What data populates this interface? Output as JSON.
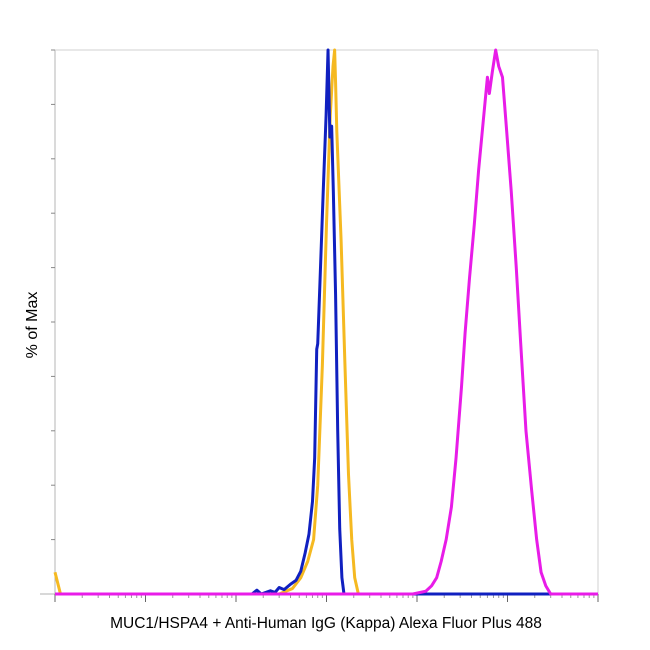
{
  "chart_data": {
    "type": "line",
    "title": "",
    "xlabel": "MUC1/HSPA4 + Anti-Human IgG (Kappa) Alexa Fluor Plus 488",
    "ylabel": "% of Max",
    "x_scale": "log",
    "xlim": [
      1,
      1000000
    ],
    "ylim": [
      0,
      100
    ],
    "grid": false,
    "legend": "none",
    "series": [
      {
        "color": "#f5b921",
        "points": [
          [
            1,
            4
          ],
          [
            1.15,
            0
          ],
          [
            300,
            0
          ],
          [
            420,
            1
          ],
          [
            520,
            3
          ],
          [
            620,
            6
          ],
          [
            720,
            10
          ],
          [
            800,
            20
          ],
          [
            900,
            42
          ],
          [
            1000,
            68
          ],
          [
            1100,
            88
          ],
          [
            1180,
            97
          ],
          [
            1230,
            100
          ],
          [
            1260,
            94
          ],
          [
            1300,
            85
          ],
          [
            1450,
            65
          ],
          [
            1600,
            42
          ],
          [
            1750,
            22
          ],
          [
            1900,
            10
          ],
          [
            2050,
            3
          ],
          [
            2250,
            0
          ],
          [
            1000000,
            0
          ]
        ]
      },
      {
        "color": "#1020c0",
        "points": [
          [
            1,
            0
          ],
          [
            150,
            0
          ],
          [
            170,
            0.7
          ],
          [
            190,
            0
          ],
          [
            240,
            0.6
          ],
          [
            270,
            0.3
          ],
          [
            300,
            1.2
          ],
          [
            340,
            0.8
          ],
          [
            400,
            1.8
          ],
          [
            460,
            2.5
          ],
          [
            520,
            4.2
          ],
          [
            580,
            7.5
          ],
          [
            640,
            11
          ],
          [
            700,
            17
          ],
          [
            740,
            25
          ],
          [
            780,
            45
          ],
          [
            800,
            46
          ],
          [
            850,
            58
          ],
          [
            920,
            74
          ],
          [
            990,
            88
          ],
          [
            1040,
            100
          ],
          [
            1090,
            84
          ],
          [
            1140,
            86
          ],
          [
            1190,
            74
          ],
          [
            1260,
            55
          ],
          [
            1330,
            30
          ],
          [
            1400,
            12
          ],
          [
            1480,
            3
          ],
          [
            1560,
            0
          ],
          [
            1000000,
            0
          ]
        ]
      },
      {
        "color": "#e81ce8",
        "points": [
          [
            1,
            0
          ],
          [
            9000,
            0
          ],
          [
            12500,
            0.5
          ],
          [
            14500,
            1.5
          ],
          [
            16500,
            3
          ],
          [
            18500,
            6
          ],
          [
            21000,
            10
          ],
          [
            24000,
            16
          ],
          [
            27000,
            25
          ],
          [
            31000,
            38
          ],
          [
            34000,
            48
          ],
          [
            38000,
            58
          ],
          [
            43000,
            68
          ],
          [
            48000,
            78
          ],
          [
            54000,
            87
          ],
          [
            60000,
            95
          ],
          [
            63000,
            92
          ],
          [
            68000,
            96
          ],
          [
            74000,
            100
          ],
          [
            80000,
            97
          ],
          [
            88000,
            95
          ],
          [
            98000,
            85
          ],
          [
            110000,
            74
          ],
          [
            125000,
            60
          ],
          [
            140000,
            46
          ],
          [
            160000,
            30
          ],
          [
            185000,
            19
          ],
          [
            210000,
            10
          ],
          [
            235000,
            4
          ],
          [
            265000,
            1.5
          ],
          [
            300000,
            0
          ],
          [
            1000000,
            0
          ]
        ]
      }
    ]
  }
}
